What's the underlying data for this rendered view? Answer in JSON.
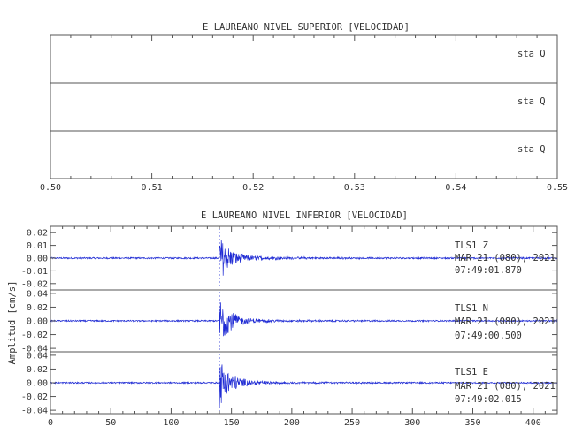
{
  "chart_data": [
    {
      "type": "line",
      "title": "E LAUREANO NIVEL SUPERIOR [VELOCIDAD]",
      "xlim": [
        0.5,
        0.55
      ],
      "x_ticks": [
        "0.50",
        "0.51",
        "0.52",
        "0.53",
        "0.54",
        "0.55"
      ],
      "grid": false,
      "panels": [
        {
          "label": "sta   Q",
          "values": []
        },
        {
          "label": "sta   Q",
          "values": []
        },
        {
          "label": "sta   Q",
          "values": []
        }
      ]
    },
    {
      "type": "line",
      "title": "E LAUREANO NIVEL INFERIOR [VELOCIDAD]",
      "ylabel": "Amplitud [cm/s]",
      "xlim": [
        0,
        420
      ],
      "x_ticks": [
        "0",
        "50",
        "100",
        "150",
        "200",
        "250",
        "300",
        "350",
        "400"
      ],
      "grid": false,
      "line_color": "#1f2bd4",
      "event_onset_x": 140,
      "panels": [
        {
          "station": "TLS1   Z",
          "date": "MAR 21 (080), 2021",
          "time": "07:49:01.870",
          "ylim": [
            -0.025,
            0.025
          ],
          "y_ticks": [
            "0.02",
            "0.01",
            "0.00",
            "-0.01",
            "-0.02"
          ],
          "y_tick_values": [
            0.02,
            0.01,
            0.0,
            -0.01,
            -0.02
          ],
          "noise_amplitude": 0.0006,
          "peak_amplitude": 0.017
        },
        {
          "station": "TLS1   N",
          "date": "MAR 21 (080), 2021",
          "time": "07:49:00.500",
          "ylim": [
            -0.045,
            0.045
          ],
          "y_ticks": [
            "0.04",
            "0.02",
            "0.00",
            "-0.02",
            "-0.04"
          ],
          "y_tick_values": [
            0.04,
            0.02,
            0.0,
            -0.02,
            -0.04
          ],
          "noise_amplitude": 0.001,
          "peak_amplitude": 0.035
        },
        {
          "station": "TLS1   E",
          "date": "MAR 21 (080), 2021",
          "time": "07:49:02.015",
          "ylim": [
            -0.045,
            0.045
          ],
          "y_ticks": [
            "0.04",
            "0.02",
            "0.00",
            "-0.02",
            "-0.04"
          ],
          "y_tick_values": [
            0.04,
            0.02,
            0.0,
            -0.02,
            -0.04
          ],
          "noise_amplitude": 0.001,
          "peak_amplitude": 0.035
        }
      ]
    }
  ]
}
